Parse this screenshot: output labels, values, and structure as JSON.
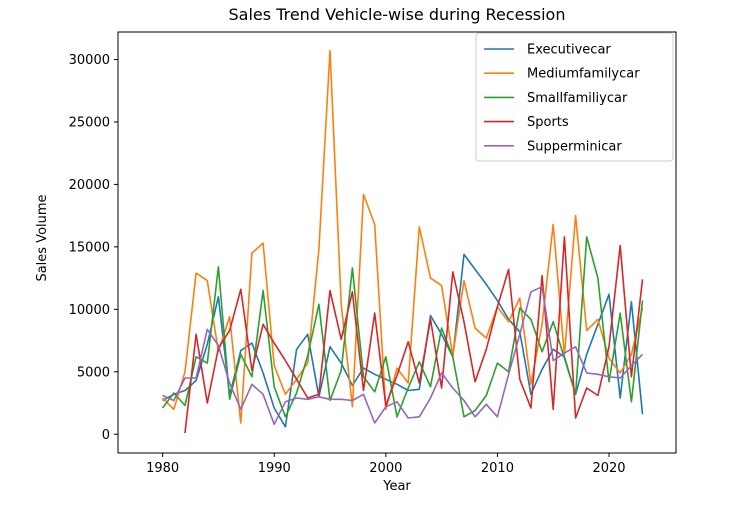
{
  "chart_data": {
    "type": "line",
    "title": "Sales Trend Vehicle-wise during Recession",
    "xlabel": "Year",
    "ylabel": "Sales Volume",
    "xlim": [
      1976,
      2026
    ],
    "ylim": [
      -1500,
      32200
    ],
    "xticks": [
      1980,
      1990,
      2000,
      2010,
      2020
    ],
    "yticks": [
      0,
      5000,
      10000,
      15000,
      20000,
      25000,
      30000
    ],
    "grid": false,
    "legend_position": "top-right",
    "series": [
      {
        "name": "Executivecar",
        "color": "#1f77b4",
        "points": [
          [
            1980,
            2700
          ],
          [
            1981,
            3200
          ],
          [
            1982,
            3500
          ],
          [
            1983,
            4300
          ],
          [
            1984,
            7200
          ],
          [
            1985,
            11000
          ],
          [
            1986,
            3100
          ],
          [
            1987,
            6700
          ],
          [
            1988,
            7300
          ],
          [
            1989,
            4900
          ],
          [
            1990,
            2100
          ],
          [
            1991,
            600
          ],
          [
            1992,
            6800
          ],
          [
            1993,
            8000
          ],
          [
            1994,
            3000
          ],
          [
            1995,
            7000
          ],
          [
            1996,
            5700
          ],
          [
            1997,
            3900
          ],
          [
            1998,
            5300
          ],
          [
            1999,
            4800
          ],
          [
            2000,
            4400
          ],
          [
            2001,
            4000
          ],
          [
            2002,
            3500
          ],
          [
            2003,
            3600
          ],
          [
            2004,
            9500
          ],
          [
            2005,
            8000
          ],
          [
            2006,
            6200
          ],
          [
            2007,
            14400
          ],
          [
            2008,
            13200
          ],
          [
            2009,
            12000
          ],
          [
            2010,
            10700
          ],
          [
            2011,
            9200
          ],
          [
            2012,
            8200
          ],
          [
            2013,
            3200
          ],
          [
            2014,
            5200
          ],
          [
            2015,
            6800
          ],
          [
            2016,
            6200
          ],
          [
            2017,
            3200
          ],
          [
            2018,
            6400
          ],
          [
            2019,
            8800
          ],
          [
            2020,
            11200
          ],
          [
            2021,
            2900
          ],
          [
            2022,
            10600
          ],
          [
            2023,
            1600
          ]
        ]
      },
      {
        "name": "Mediumfamilycar",
        "color": "#ff7f0e",
        "points": [
          [
            1980,
            2900
          ],
          [
            1981,
            2000
          ],
          [
            1982,
            5000
          ],
          [
            1983,
            12900
          ],
          [
            1984,
            12300
          ],
          [
            1985,
            6600
          ],
          [
            1986,
            9400
          ],
          [
            1987,
            900
          ],
          [
            1988,
            14500
          ],
          [
            1989,
            15300
          ],
          [
            1990,
            5500
          ],
          [
            1991,
            3200
          ],
          [
            1992,
            4400
          ],
          [
            1993,
            5700
          ],
          [
            1994,
            14800
          ],
          [
            1995,
            30700
          ],
          [
            1996,
            10400
          ],
          [
            1997,
            2200
          ],
          [
            1998,
            19200
          ],
          [
            1999,
            16800
          ],
          [
            2000,
            2000
          ],
          [
            2001,
            5300
          ],
          [
            2002,
            4100
          ],
          [
            2003,
            16600
          ],
          [
            2004,
            12500
          ],
          [
            2005,
            11900
          ],
          [
            2006,
            6300
          ],
          [
            2007,
            12300
          ],
          [
            2008,
            8500
          ],
          [
            2009,
            7700
          ],
          [
            2010,
            10200
          ],
          [
            2011,
            9000
          ],
          [
            2012,
            10900
          ],
          [
            2013,
            4000
          ],
          [
            2014,
            8800
          ],
          [
            2015,
            16800
          ],
          [
            2016,
            6300
          ],
          [
            2017,
            17500
          ],
          [
            2018,
            8300
          ],
          [
            2019,
            9200
          ],
          [
            2020,
            6100
          ],
          [
            2021,
            4900
          ],
          [
            2022,
            6400
          ],
          [
            2023,
            10100
          ]
        ]
      },
      {
        "name": "Smallfamiliycar",
        "color": "#2ca02c",
        "points": [
          [
            1980,
            2100
          ],
          [
            1981,
            3300
          ],
          [
            1982,
            2300
          ],
          [
            1983,
            6200
          ],
          [
            1984,
            5700
          ],
          [
            1985,
            13400
          ],
          [
            1986,
            2800
          ],
          [
            1987,
            6400
          ],
          [
            1988,
            4600
          ],
          [
            1989,
            11500
          ],
          [
            1990,
            3800
          ],
          [
            1991,
            1400
          ],
          [
            1992,
            3300
          ],
          [
            1993,
            6300
          ],
          [
            1994,
            10400
          ],
          [
            1995,
            2700
          ],
          [
            1996,
            5100
          ],
          [
            1997,
            13300
          ],
          [
            1998,
            4600
          ],
          [
            1999,
            3400
          ],
          [
            2000,
            6200
          ],
          [
            2001,
            1400
          ],
          [
            2002,
            3700
          ],
          [
            2003,
            5800
          ],
          [
            2004,
            3800
          ],
          [
            2005,
            8500
          ],
          [
            2006,
            6200
          ],
          [
            2007,
            1400
          ],
          [
            2008,
            1900
          ],
          [
            2009,
            3100
          ],
          [
            2010,
            5700
          ],
          [
            2011,
            5000
          ],
          [
            2012,
            10100
          ],
          [
            2013,
            9200
          ],
          [
            2014,
            6600
          ],
          [
            2015,
            9000
          ],
          [
            2016,
            6100
          ],
          [
            2017,
            3200
          ],
          [
            2018,
            15800
          ],
          [
            2019,
            12500
          ],
          [
            2020,
            4200
          ],
          [
            2021,
            9700
          ],
          [
            2022,
            2600
          ],
          [
            2023,
            10700
          ]
        ]
      },
      {
        "name": "Sports",
        "color": "#d62728",
        "points": [
          [
            1982,
            100
          ],
          [
            1983,
            8000
          ],
          [
            1984,
            2500
          ],
          [
            1985,
            6900
          ],
          [
            1986,
            8300
          ],
          [
            1987,
            11600
          ],
          [
            1988,
            5100
          ],
          [
            1989,
            8800
          ],
          [
            1990,
            7300
          ],
          [
            1991,
            5900
          ],
          [
            1992,
            4400
          ],
          [
            1993,
            2900
          ],
          [
            1994,
            3200
          ],
          [
            1995,
            11500
          ],
          [
            1996,
            7600
          ],
          [
            1997,
            11400
          ],
          [
            1998,
            3500
          ],
          [
            1999,
            9700
          ],
          [
            2000,
            2300
          ],
          [
            2001,
            4700
          ],
          [
            2002,
            7400
          ],
          [
            2003,
            4100
          ],
          [
            2004,
            9200
          ],
          [
            2005,
            3700
          ],
          [
            2006,
            13000
          ],
          [
            2007,
            9000
          ],
          [
            2008,
            4200
          ],
          [
            2009,
            6800
          ],
          [
            2010,
            10200
          ],
          [
            2011,
            13200
          ],
          [
            2012,
            4400
          ],
          [
            2013,
            2100
          ],
          [
            2014,
            12700
          ],
          [
            2015,
            2000
          ],
          [
            2016,
            15800
          ],
          [
            2017,
            1300
          ],
          [
            2018,
            3700
          ],
          [
            2019,
            3100
          ],
          [
            2020,
            7000
          ],
          [
            2021,
            15100
          ],
          [
            2022,
            4600
          ],
          [
            2023,
            12400
          ]
        ]
      },
      {
        "name": "Supperminicar",
        "color": "#9467bd",
        "points": [
          [
            1980,
            3100
          ],
          [
            1981,
            2700
          ],
          [
            1982,
            4500
          ],
          [
            1983,
            4500
          ],
          [
            1984,
            8400
          ],
          [
            1985,
            7100
          ],
          [
            1986,
            4100
          ],
          [
            1987,
            2000
          ],
          [
            1988,
            4000
          ],
          [
            1989,
            3200
          ],
          [
            1990,
            800
          ],
          [
            1991,
            2600
          ],
          [
            1992,
            2900
          ],
          [
            1993,
            2800
          ],
          [
            1994,
            3000
          ],
          [
            1995,
            2800
          ],
          [
            1996,
            2800
          ],
          [
            1997,
            2700
          ],
          [
            1998,
            3200
          ],
          [
            1999,
            900
          ],
          [
            2000,
            2200
          ],
          [
            2001,
            2600
          ],
          [
            2002,
            1300
          ],
          [
            2003,
            1400
          ],
          [
            2004,
            2900
          ],
          [
            2005,
            4900
          ],
          [
            2006,
            3700
          ],
          [
            2007,
            2700
          ],
          [
            2008,
            1400
          ],
          [
            2009,
            2400
          ],
          [
            2010,
            1400
          ],
          [
            2011,
            4800
          ],
          [
            2012,
            8000
          ],
          [
            2013,
            11400
          ],
          [
            2014,
            11800
          ],
          [
            2015,
            5900
          ],
          [
            2016,
            6500
          ],
          [
            2017,
            7000
          ],
          [
            2018,
            4900
          ],
          [
            2019,
            4800
          ],
          [
            2020,
            4600
          ],
          [
            2021,
            4500
          ],
          [
            2022,
            5500
          ],
          [
            2023,
            6400
          ]
        ]
      }
    ]
  }
}
